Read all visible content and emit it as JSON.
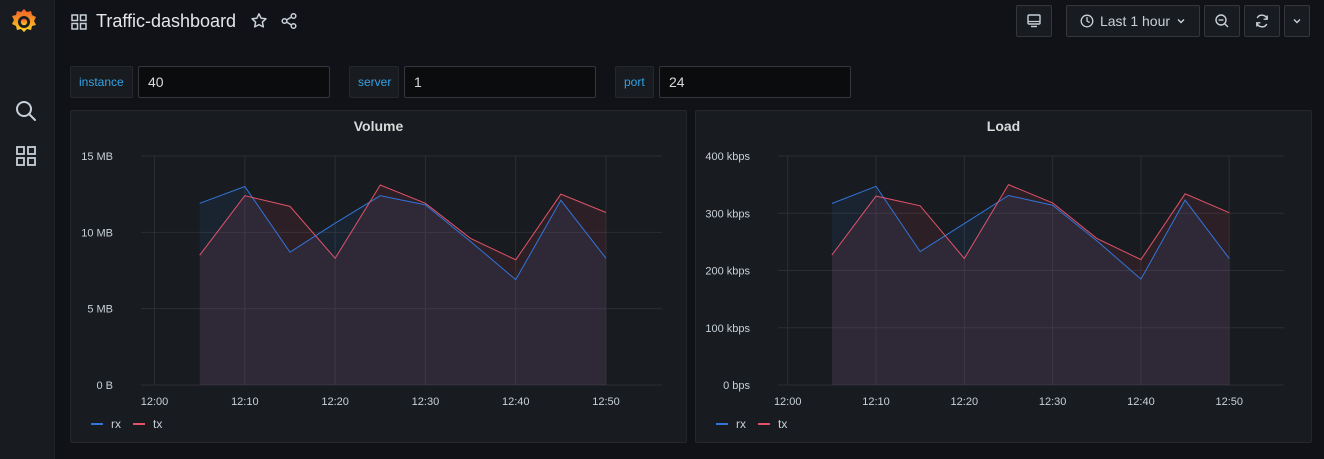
{
  "header": {
    "title": "Traffic-dashboard",
    "time_range": "Last 1 hour"
  },
  "variables": [
    {
      "label": "instance",
      "value": "40"
    },
    {
      "label": "server",
      "value": "1"
    },
    {
      "label": "port",
      "value": "24"
    }
  ],
  "colors": {
    "rx": "#3274d9",
    "tx": "#e0526a",
    "accent": "#33a2e5"
  },
  "chart_data": [
    {
      "type": "line",
      "title": "Volume",
      "x": [
        "12:05",
        "12:10",
        "12:15",
        "12:20",
        "12:25",
        "12:30",
        "12:35",
        "12:40",
        "12:45",
        "12:50"
      ],
      "xticks": [
        "12:00",
        "12:10",
        "12:20",
        "12:30",
        "12:40",
        "12:50"
      ],
      "yticks": [
        "0 B",
        "5 MB",
        "10 MB",
        "15 MB"
      ],
      "ylim": [
        0,
        15
      ],
      "series": [
        {
          "name": "rx",
          "values": [
            11.9,
            13.0,
            8.7,
            10.6,
            12.4,
            11.8,
            9.4,
            6.9,
            12.1,
            8.3
          ]
        },
        {
          "name": "tx",
          "values": [
            8.5,
            12.4,
            11.7,
            8.3,
            13.1,
            11.9,
            9.6,
            8.2,
            12.5,
            11.3
          ]
        }
      ],
      "legend": "bottom-left"
    },
    {
      "type": "line",
      "title": "Load",
      "x": [
        "12:05",
        "12:10",
        "12:15",
        "12:20",
        "12:25",
        "12:30",
        "12:35",
        "12:40",
        "12:45",
        "12:50"
      ],
      "xticks": [
        "12:00",
        "12:10",
        "12:20",
        "12:30",
        "12:40",
        "12:50"
      ],
      "yticks": [
        "0 bps",
        "100 kbps",
        "200 kbps",
        "300 kbps",
        "400 kbps"
      ],
      "ylim": [
        0,
        400
      ],
      "series": [
        {
          "name": "rx",
          "values": [
            317,
            347,
            233,
            282,
            331,
            314,
            252,
            185,
            323,
            221
          ]
        },
        {
          "name": "tx",
          "values": [
            227,
            330,
            313,
            221,
            350,
            318,
            256,
            219,
            334,
            301
          ]
        }
      ],
      "legend": "bottom-left"
    }
  ]
}
